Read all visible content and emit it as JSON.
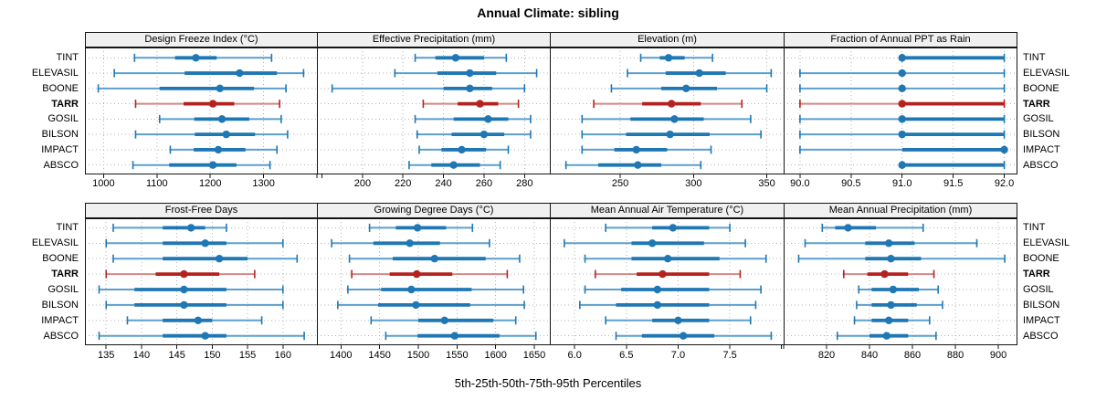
{
  "title": "Annual Climate: sibling",
  "axis_label": "5th-25th-50th-75th-95th Percentiles",
  "sites": [
    "TINT",
    "ELEVASIL",
    "BOONE",
    "TARR",
    "GOSIL",
    "BILSON",
    "IMPACT",
    "ABSCO"
  ],
  "highlight_site": "TARR",
  "colors": {
    "series": "#1f77b4",
    "series_light": "#5b9fce",
    "highlight": "#b3221f",
    "highlight_light": "#d28984",
    "grid": "#b3b3b3",
    "border": "#141414",
    "header_bg": "#f0f0f0",
    "text": "#000000"
  },
  "chart_data": {
    "type": "dotplot",
    "percentiles": [
      5,
      25,
      50,
      75,
      95
    ],
    "rows_top_to_bottom": [
      "TINT",
      "ELEVASIL",
      "BOONE",
      "TARR",
      "GOSIL",
      "BILSON",
      "IMPACT",
      "ABSCO"
    ],
    "panels": [
      {
        "title": "Design Freeze Index (°C)",
        "range": [
          965,
          1400
        ],
        "ticks": [
          {
            "v": 1000,
            "label": "1000"
          },
          {
            "v": 1100,
            "label": "1100"
          },
          {
            "v": 1200,
            "label": "1200"
          },
          {
            "v": 1300,
            "label": "1300"
          },
          {
            "v": 1400,
            "label": ""
          }
        ],
        "values": {
          "TINT": [
            1058,
            1134,
            1173,
            1212,
            1315
          ],
          "ELEVASIL": [
            1020,
            1152,
            1255,
            1325,
            1375
          ],
          "BOONE": [
            990,
            1105,
            1218,
            1282,
            1342
          ],
          "TARR": [
            1060,
            1150,
            1205,
            1245,
            1330
          ],
          "GOSIL": [
            1105,
            1170,
            1222,
            1273,
            1333
          ],
          "BILSON": [
            1060,
            1171,
            1230,
            1284,
            1345
          ],
          "IMPACT": [
            1125,
            1169,
            1215,
            1266,
            1325
          ],
          "ABSCO": [
            1055,
            1123,
            1205,
            1249,
            1312
          ]
        }
      },
      {
        "title": "Effective Precipitation (mm)",
        "range": [
          177.5,
          292.5
        ],
        "ticks": [
          {
            "v": 180,
            "label": ""
          },
          {
            "v": 200,
            "label": "200"
          },
          {
            "v": 220,
            "label": "220"
          },
          {
            "v": 240,
            "label": "240"
          },
          {
            "v": 260,
            "label": "260"
          },
          {
            "v": 280,
            "label": "280"
          }
        ],
        "values": {
          "TINT": [
            226,
            236,
            246,
            260,
            271
          ],
          "ELEVASIL": [
            216,
            237,
            253,
            266,
            286
          ],
          "BOONE": [
            185,
            240,
            253,
            264,
            280
          ],
          "TARR": [
            230,
            247,
            258,
            267,
            277
          ],
          "GOSIL": [
            226,
            245,
            262,
            272,
            283
          ],
          "BILSON": [
            227,
            244,
            260,
            270,
            283
          ],
          "IMPACT": [
            228,
            239,
            249,
            261,
            272
          ],
          "ABSCO": [
            223,
            234,
            245,
            258,
            268
          ]
        }
      },
      {
        "title": "Elevation (m)",
        "range": [
          202,
          361.5
        ],
        "ticks": [
          {
            "v": 250,
            "label": "250"
          },
          {
            "v": 300,
            "label": "300"
          },
          {
            "v": 350,
            "label": "350"
          }
        ],
        "values": {
          "TINT": [
            264,
            277,
            283,
            294,
            313
          ],
          "ELEVASIL": [
            255,
            281,
            304,
            322,
            353
          ],
          "BOONE": [
            244,
            278,
            295,
            316,
            350
          ],
          "TARR": [
            232,
            265,
            285,
            305,
            333
          ],
          "GOSIL": [
            224,
            257,
            287,
            307,
            339
          ],
          "BILSON": [
            224,
            254,
            284,
            311,
            346
          ],
          "IMPACT": [
            224,
            246,
            261,
            282,
            312
          ],
          "ABSCO": [
            213,
            235,
            262,
            278,
            305
          ]
        }
      },
      {
        "title": "Fraction of Annual PPT as Rain",
        "range": [
          89.84,
          92.12
        ],
        "ticks": [
          {
            "v": 90.0,
            "label": "90.0"
          },
          {
            "v": 90.5,
            "label": "90.5"
          },
          {
            "v": 91.0,
            "label": "91.0"
          },
          {
            "v": 91.5,
            "label": "91.5"
          },
          {
            "v": 92.0,
            "label": "92.0"
          }
        ],
        "values": {
          "TINT": [
            91,
            91,
            91,
            92,
            92
          ],
          "ELEVASIL": [
            90,
            91,
            91,
            91,
            92
          ],
          "BOONE": [
            90,
            91,
            91,
            91,
            92
          ],
          "TARR": [
            90,
            91,
            91,
            92,
            92
          ],
          "GOSIL": [
            90,
            91,
            91,
            92,
            92
          ],
          "BILSON": [
            90,
            91,
            91,
            92,
            92
          ],
          "IMPACT": [
            90,
            91,
            92,
            92,
            92
          ],
          "ABSCO": [
            91,
            91,
            91,
            92,
            92
          ]
        }
      },
      {
        "title": "Frost-Free Days",
        "range": [
          132,
          164.8
        ],
        "ticks": [
          {
            "v": 135,
            "label": "135"
          },
          {
            "v": 140,
            "label": "140"
          },
          {
            "v": 145,
            "label": "145"
          },
          {
            "v": 150,
            "label": "150"
          },
          {
            "v": 155,
            "label": "155"
          },
          {
            "v": 160,
            "label": "160"
          }
        ],
        "values": {
          "TINT": [
            136,
            143,
            147,
            149,
            152
          ],
          "ELEVASIL": [
            135,
            143,
            149,
            152,
            160
          ],
          "BOONE": [
            136,
            143,
            151,
            155,
            162
          ],
          "TARR": [
            135,
            142,
            146,
            151,
            156
          ],
          "GOSIL": [
            134,
            139,
            146,
            152,
            160
          ],
          "BILSON": [
            135,
            139,
            146,
            152,
            160
          ],
          "IMPACT": [
            138,
            143,
            148,
            150,
            157
          ],
          "ABSCO": [
            134,
            143,
            149,
            152,
            163
          ]
        }
      },
      {
        "title": "Growing Degree Days (°C)",
        "range": [
          1369,
          1670
        ],
        "ticks": [
          {
            "v": 1400,
            "label": "1400"
          },
          {
            "v": 1450,
            "label": "1450"
          },
          {
            "v": 1500,
            "label": "1500"
          },
          {
            "v": 1550,
            "label": "1550"
          },
          {
            "v": 1600,
            "label": "1600"
          },
          {
            "v": 1650,
            "label": "1650"
          }
        ],
        "values": {
          "TINT": [
            1437,
            1471,
            1499,
            1536,
            1570
          ],
          "ELEVASIL": [
            1388,
            1442,
            1489,
            1528,
            1592
          ],
          "BOONE": [
            1411,
            1467,
            1521,
            1587,
            1631
          ],
          "TARR": [
            1414,
            1463,
            1498,
            1544,
            1615
          ],
          "GOSIL": [
            1409,
            1452,
            1491,
            1569,
            1636
          ],
          "BILSON": [
            1396,
            1448,
            1497,
            1567,
            1637
          ],
          "IMPACT": [
            1439,
            1500,
            1534,
            1597,
            1626
          ],
          "ABSCO": [
            1458,
            1499,
            1547,
            1605,
            1652
          ]
        }
      },
      {
        "title": "Mean Annual Air Temperature (°C)",
        "range": [
          5.76,
          8.02
        ],
        "ticks": [
          {
            "v": 6.0,
            "label": "6.0"
          },
          {
            "v": 6.5,
            "label": "6.5"
          },
          {
            "v": 7.0,
            "label": "7.0"
          },
          {
            "v": 7.5,
            "label": "7.5"
          },
          {
            "v": 8.0,
            "label": ""
          }
        ],
        "values": {
          "TINT": [
            6.3,
            6.75,
            6.95,
            7.3,
            7.5
          ],
          "ELEVASIL": [
            5.9,
            6.55,
            6.75,
            7.25,
            7.65
          ],
          "BOONE": [
            6.1,
            6.55,
            6.9,
            7.4,
            7.85
          ],
          "TARR": [
            6.2,
            6.6,
            6.85,
            7.3,
            7.6
          ],
          "GOSIL": [
            6.1,
            6.45,
            6.8,
            7.3,
            7.8
          ],
          "BILSON": [
            6.05,
            6.4,
            6.8,
            7.3,
            7.75
          ],
          "IMPACT": [
            6.3,
            6.75,
            7.0,
            7.3,
            7.7
          ],
          "ABSCO": [
            6.4,
            6.65,
            7.05,
            7.35,
            7.9
          ]
        }
      },
      {
        "title": "Mean Annual Precipitation (mm)",
        "range": [
          800,
          908.5
        ],
        "ticks": [
          {
            "v": 800,
            "label": ""
          },
          {
            "v": 820,
            "label": "820"
          },
          {
            "v": 840,
            "label": "840"
          },
          {
            "v": 860,
            "label": "860"
          },
          {
            "v": 880,
            "label": "880"
          },
          {
            "v": 900,
            "label": "900"
          }
        ],
        "values": {
          "TINT": [
            818,
            824,
            830,
            843,
            865
          ],
          "ELEVASIL": [
            810,
            838,
            849,
            861,
            890
          ],
          "BOONE": [
            807,
            838,
            850,
            864,
            903
          ],
          "TARR": [
            828,
            839,
            847,
            858,
            870
          ],
          "GOSIL": [
            835,
            841,
            851,
            863,
            872
          ],
          "BILSON": [
            834,
            841,
            850,
            862,
            874
          ],
          "IMPACT": [
            833,
            841,
            849,
            858,
            868
          ],
          "ABSCO": [
            825,
            840,
            848,
            858,
            871
          ]
        }
      }
    ]
  }
}
